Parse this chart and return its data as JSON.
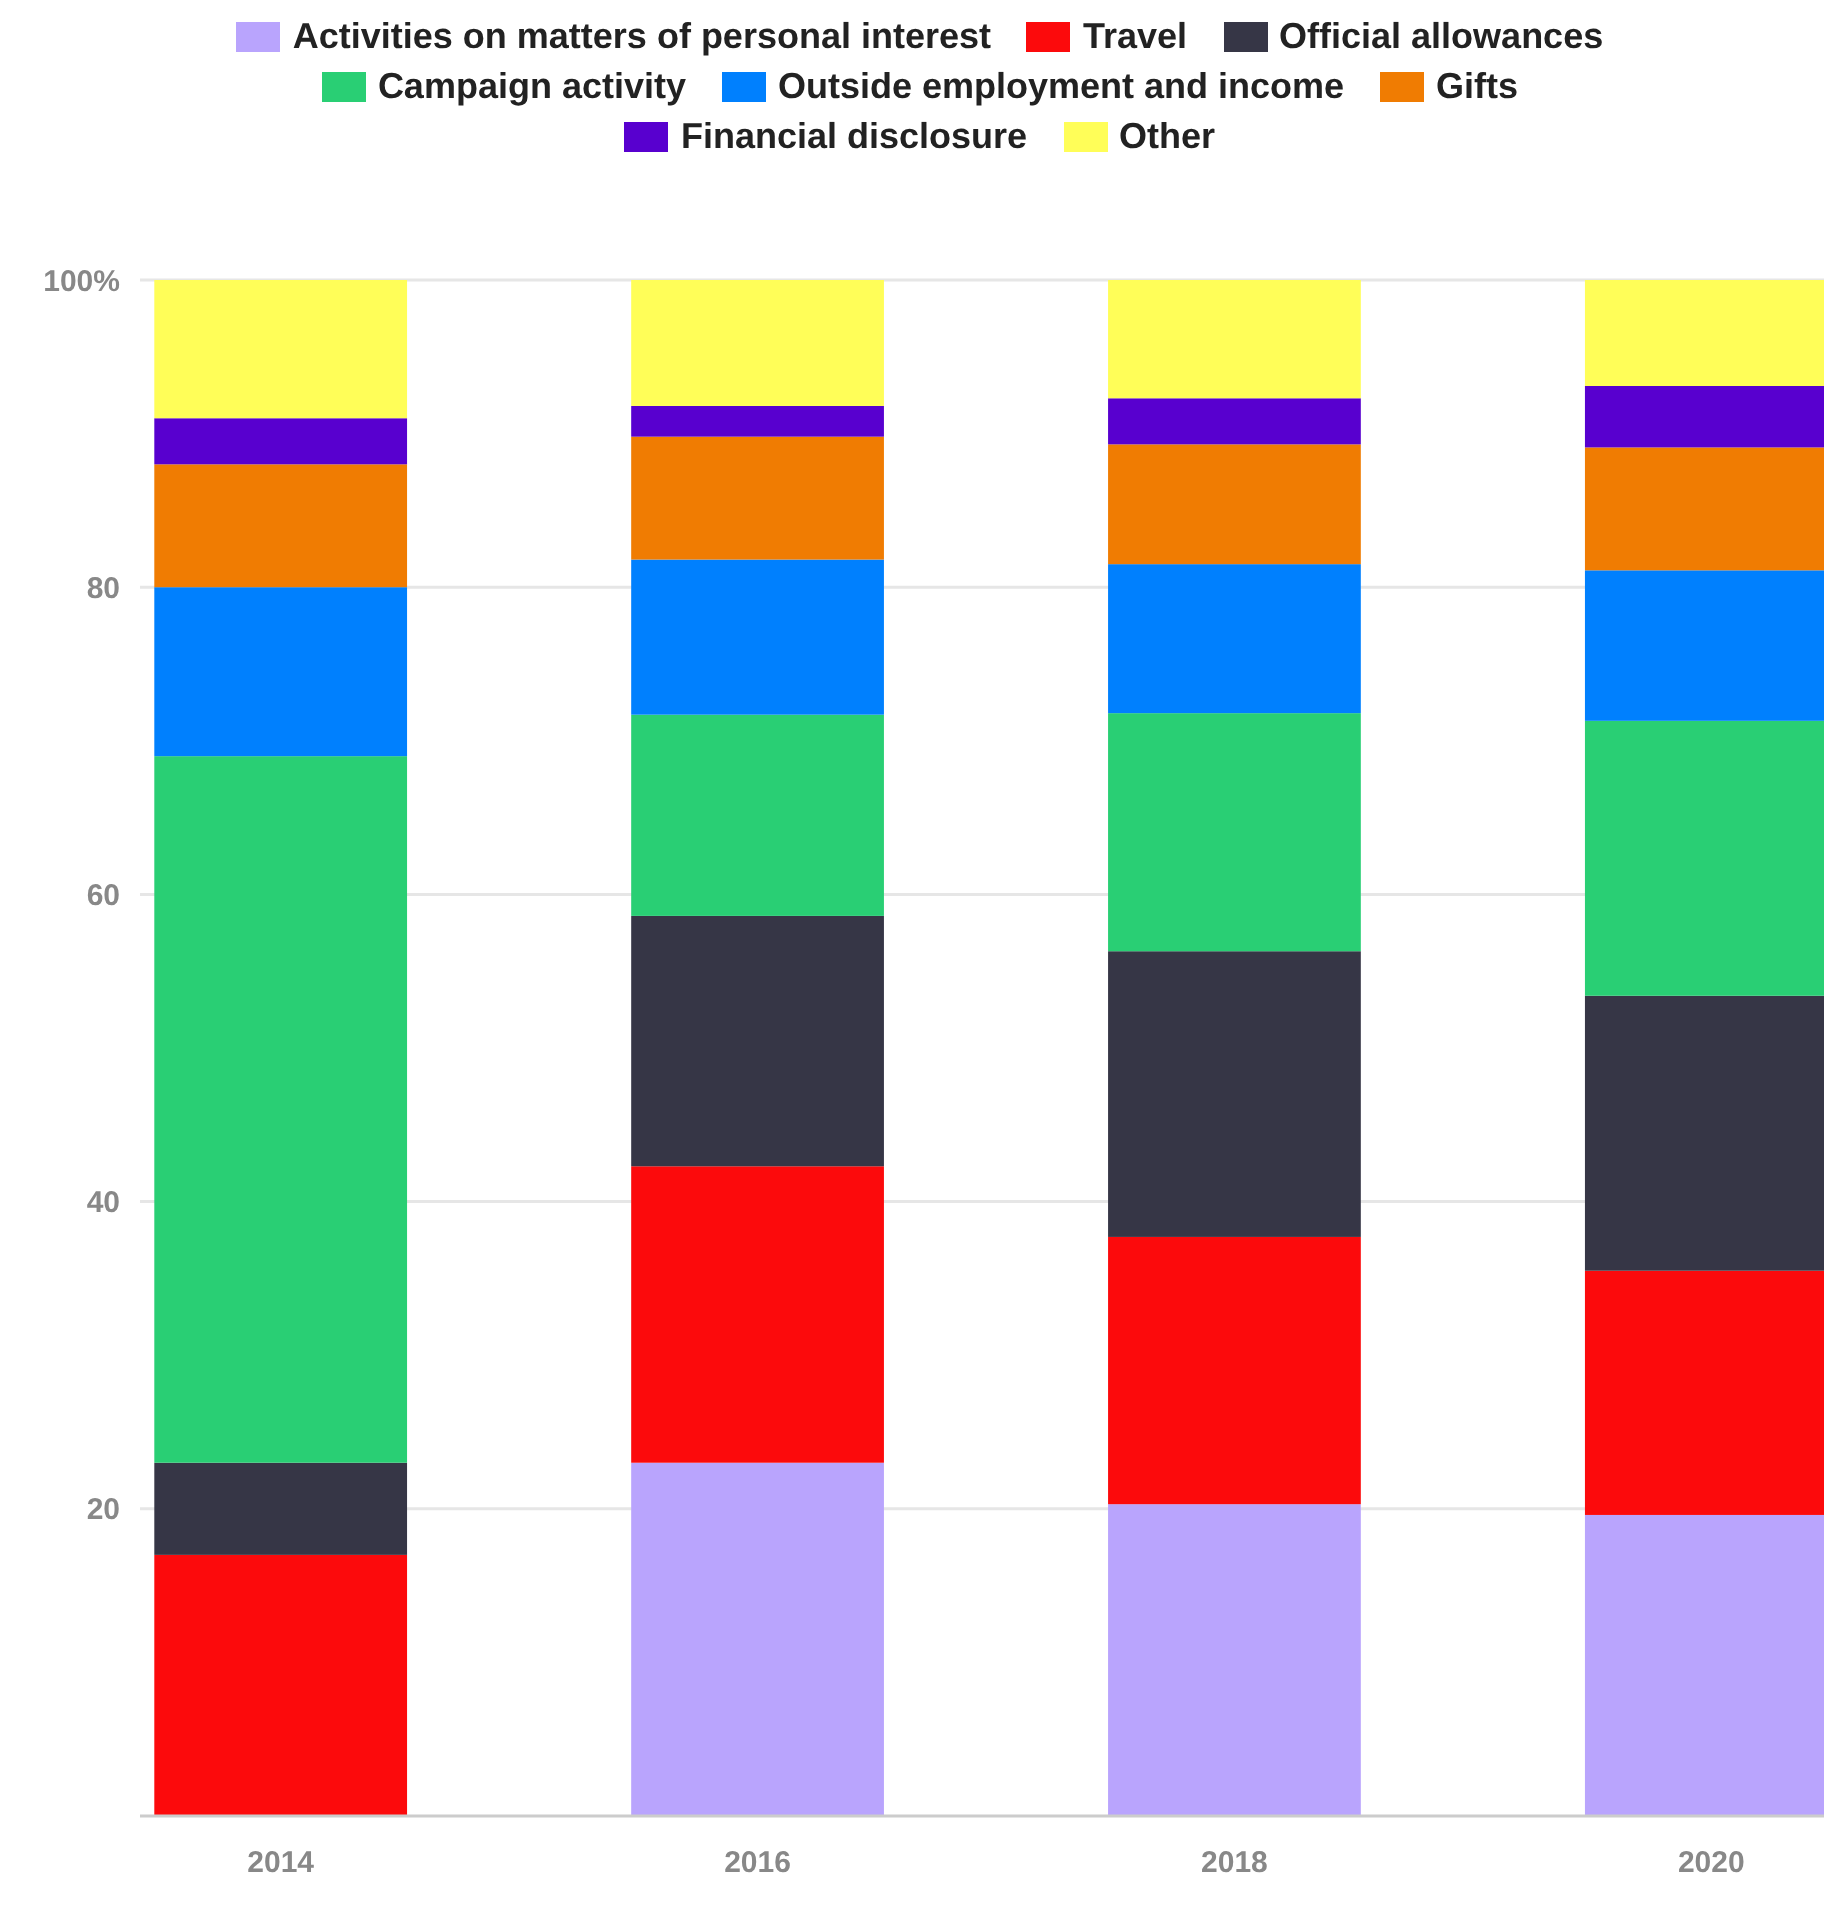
{
  "chart_data": {
    "type": "bar",
    "stacked": true,
    "categories": [
      "2014",
      "2016",
      "2018",
      "2020"
    ],
    "series": [
      {
        "name": "Activities on matters of personal interest",
        "color": "#b9a4fd",
        "values": [
          0,
          23,
          20.3,
          19.6
        ]
      },
      {
        "name": "Travel",
        "color": "#fc0a0c",
        "values": [
          17,
          19.3,
          17.4,
          15.9
        ]
      },
      {
        "name": "Official allowances",
        "color": "#363646",
        "values": [
          6,
          16.3,
          18.6,
          17.9
        ]
      },
      {
        "name": "Campaign activity",
        "color": "#29cf74",
        "values": [
          46,
          13.1,
          15.5,
          17.9
        ]
      },
      {
        "name": "Outside employment and income",
        "color": "#0080fe",
        "values": [
          11,
          10.1,
          9.7,
          9.8
        ]
      },
      {
        "name": "Gifts",
        "color": "#f07c02",
        "values": [
          8,
          8,
          7.8,
          8
        ]
      },
      {
        "name": "Financial disclosure",
        "color": "#5800cf",
        "values": [
          3,
          2,
          3,
          4
        ]
      },
      {
        "name": "Other",
        "color": "#fffe58",
        "values": [
          9,
          8.2,
          7.7,
          6.9
        ]
      }
    ],
    "ylim": [
      0,
      100
    ],
    "yticks": [
      20,
      40,
      60,
      80,
      {
        "value": 100,
        "label": "100%"
      }
    ],
    "grid": "y",
    "legend": "top"
  }
}
